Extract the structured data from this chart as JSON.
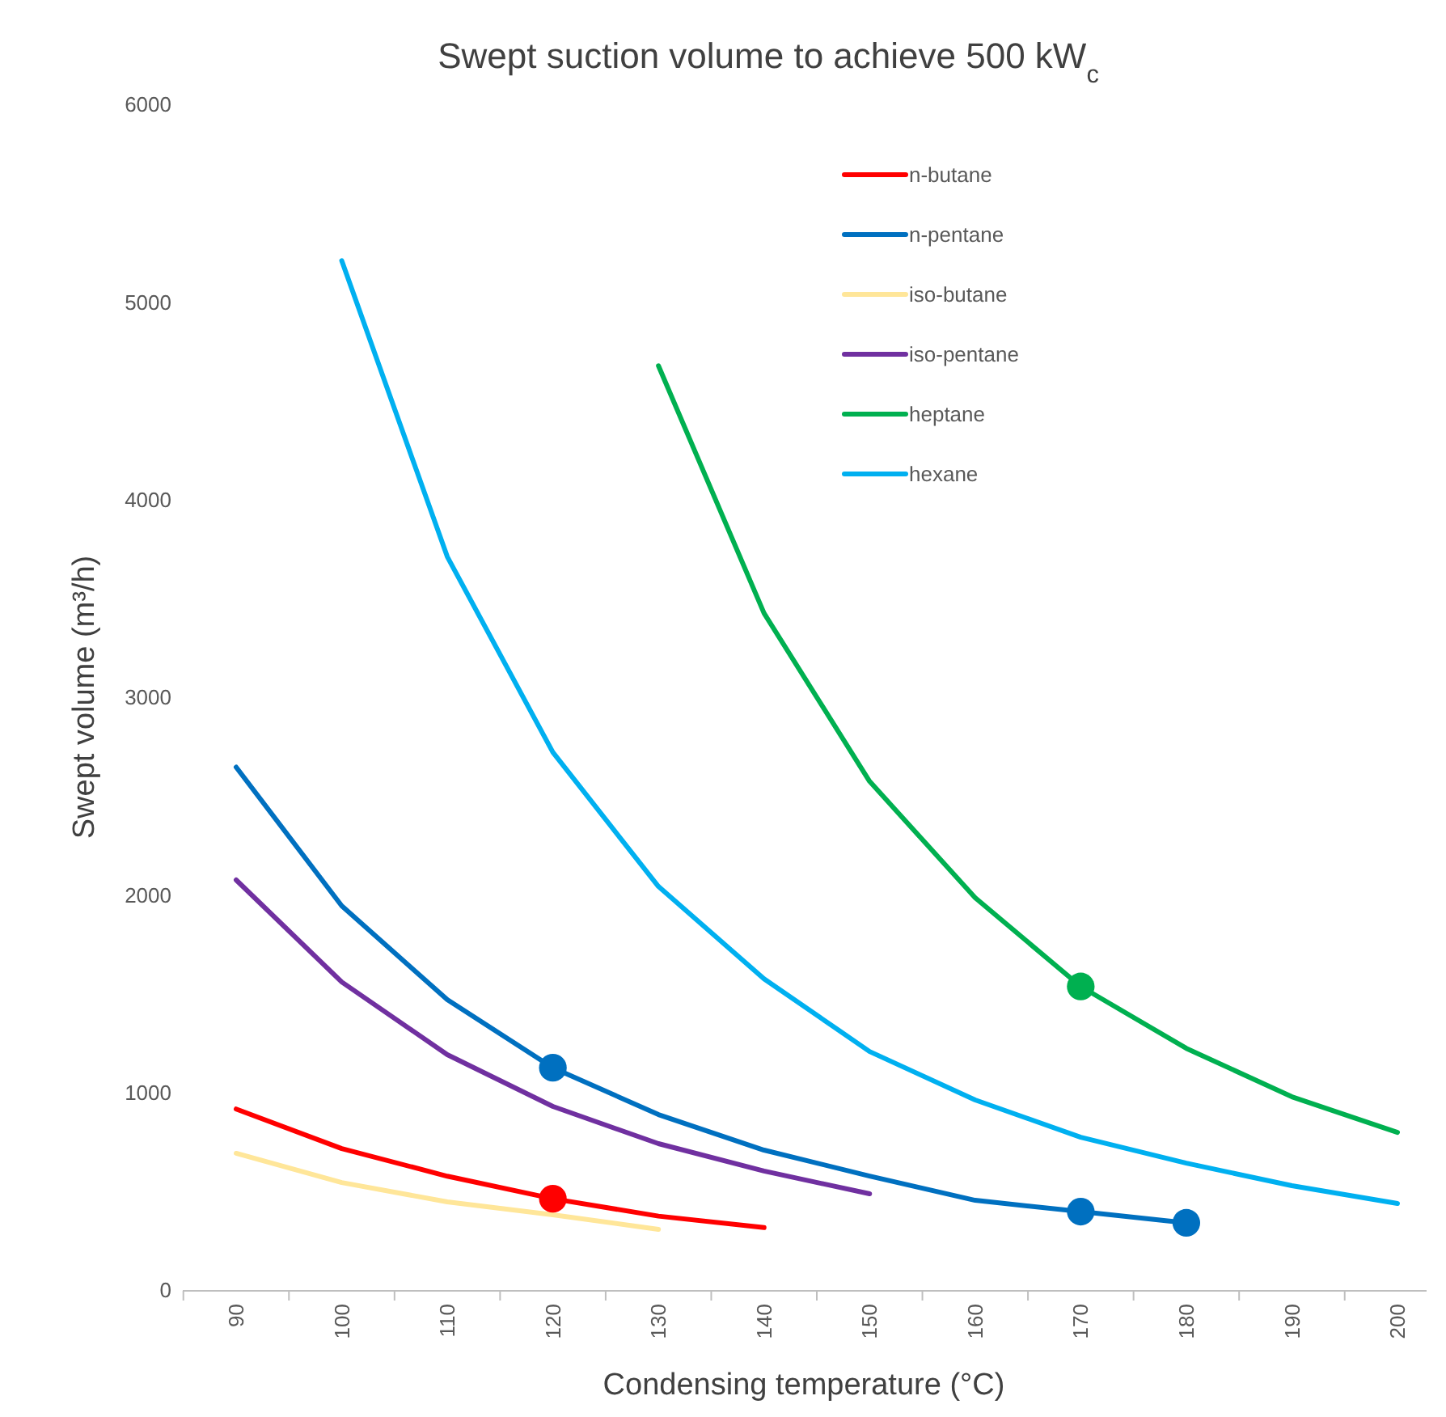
{
  "chart_data": {
    "type": "line",
    "title": "Swept suction volume to achieve 500 kW$_{c}$",
    "xlabel": "Condensing temperature (°C)",
    "ylabel": "Swept volume (m³/h)",
    "categories": [
      "90",
      "100",
      "110",
      "120",
      "130",
      "140",
      "150",
      "160",
      "170",
      "180",
      "190",
      "200"
    ],
    "ylim": [
      0,
      6000
    ],
    "yticks": [
      0,
      1000,
      2000,
      3000,
      4000,
      5000,
      6000
    ],
    "legend": "top right",
    "marker": "none",
    "line_style": "solid",
    "series": [
      {
        "name": "n-butane",
        "color": "#ff0000",
        "values": [
          920,
          720,
          580,
          466,
          378,
          320,
          null,
          null,
          null,
          null,
          null,
          null
        ]
      },
      {
        "name": "n-pentane",
        "color": "#0070c0",
        "values": [
          2650,
          1948,
          1473,
          1129,
          892,
          712,
          581,
          458,
          401,
          344,
          null,
          null
        ]
      },
      {
        "name": "iso-butane",
        "color": "#ffe699",
        "values": [
          696,
          548,
          450,
          385,
          311,
          null,
          null,
          null,
          null,
          null,
          null,
          null
        ]
      },
      {
        "name": "iso-pentane",
        "color": "#7030a0",
        "values": [
          2079,
          1563,
          1195,
          933,
          745,
          606,
          491,
          null,
          null,
          null,
          null,
          null
        ]
      },
      {
        "name": "heptane",
        "color": "#00b050",
        "values": [
          null,
          null,
          null,
          null,
          4681,
          3429,
          2578,
          1989,
          1540,
          1227,
          982,
          802
        ]
      },
      {
        "name": "hexane",
        "color": "#00b0f0",
        "values": [
          null,
          5213,
          3715,
          2725,
          2046,
          1579,
          1211,
          966,
          777,
          646,
          532,
          442
        ]
      },
      {
        "type": "scatter",
        "color": "#ff0000",
        "marker": "circle",
        "x": [
          "120"
        ],
        "values": [
          466
        ]
      },
      {
        "type": "scatter",
        "color": "#0070c0",
        "marker": "circle",
        "x": [
          "120",
          "170",
          "180"
        ],
        "values": [
          1129,
          401,
          344
        ]
      },
      {
        "type": "scatter",
        "color": "#00b050",
        "marker": "circle",
        "x": [
          "170"
        ],
        "values": [
          1540
        ]
      }
    ]
  }
}
